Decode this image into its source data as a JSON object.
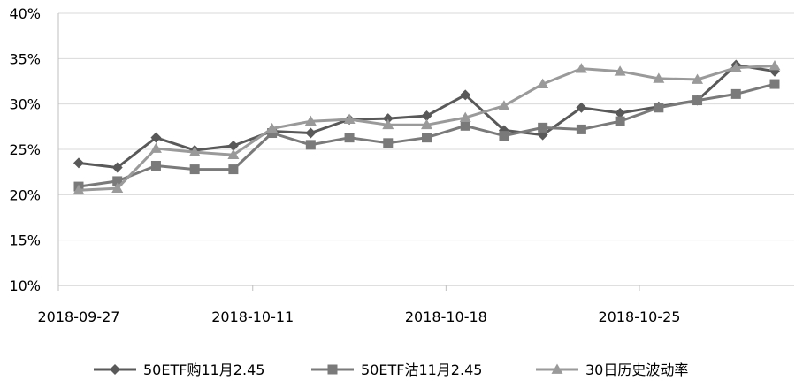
{
  "chart_data": {
    "type": "line",
    "title": "",
    "xlabel": "",
    "ylabel": "",
    "ylim": [
      0.1,
      0.4
    ],
    "yticks": [
      0.1,
      0.15,
      0.2,
      0.25,
      0.3,
      0.35,
      0.4
    ],
    "ytick_labels": [
      "10%",
      "15%",
      "20%",
      "25%",
      "30%",
      "35%",
      "40%"
    ],
    "x_count": 19,
    "xtick_labels": [
      {
        "index": 0,
        "label": "2018-09-27"
      },
      {
        "index": 5,
        "label": "2018-10-11"
      },
      {
        "index": 10,
        "label": "2018-10-18"
      },
      {
        "index": 15,
        "label": "2018-10-25"
      }
    ],
    "grid": "horizontal",
    "legend_position": "bottom",
    "series": [
      {
        "name": "50ETF购11月2.45",
        "marker": "diamond",
        "color": "#595959",
        "values": [
          0.235,
          0.23,
          0.263,
          0.249,
          0.254,
          0.27,
          0.268,
          0.283,
          0.284,
          0.287,
          0.31,
          0.271,
          0.266,
          0.296,
          0.29,
          0.297,
          0.304,
          0.343,
          0.336
        ]
      },
      {
        "name": "50ETF沽11月2.45",
        "marker": "square",
        "color": "#7a7a7a",
        "values": [
          0.209,
          0.215,
          0.232,
          0.228,
          0.228,
          0.268,
          0.255,
          0.263,
          0.257,
          0.263,
          0.276,
          0.265,
          0.274,
          0.272,
          0.281,
          0.296,
          0.304,
          0.311,
          0.322
        ]
      },
      {
        "name": "30日历史波动率",
        "marker": "triangle",
        "color": "#9a9a9a",
        "values": [
          0.205,
          0.207,
          0.251,
          0.247,
          0.244,
          0.273,
          0.281,
          0.283,
          0.277,
          0.277,
          0.285,
          0.298,
          0.322,
          0.339,
          0.336,
          0.328,
          0.327,
          0.34,
          0.342
        ]
      }
    ]
  }
}
